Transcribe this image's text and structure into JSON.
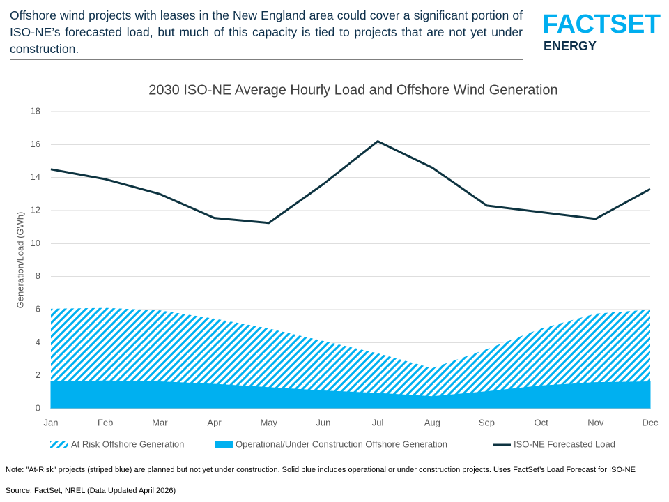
{
  "header": {
    "text": "Offshore wind projects with leases in the New England area could cover a significant portion of ISO-NE’s forecasted load, but much of this capacity is tied to projects that are not yet under construction.",
    "logo": "FACTSET",
    "logo_sub": "ENERGY"
  },
  "chart_data": {
    "type": "area",
    "title": "2030 ISO-NE Average Hourly Load and Offshore Wind Generation",
    "y_label": "Generation/Load (GWh)",
    "categories": [
      "Jan",
      "Feb",
      "Mar",
      "Apr",
      "May",
      "Jun",
      "Jul",
      "Aug",
      "Sep",
      "Oct",
      "Nov",
      "Dec"
    ],
    "series": [
      {
        "name": "At Risk Offshore Generation",
        "color": "#00b0f0",
        "kind": "area",
        "hatch": true,
        "values": [
          4.4,
          4.4,
          4.3,
          3.95,
          3.55,
          3.0,
          2.4,
          1.7,
          2.55,
          3.45,
          4.15,
          4.35
        ]
      },
      {
        "name": "Operational/Under Construction Offshore Generation",
        "color": "#00b0f0",
        "kind": "area",
        "hatch": false,
        "values": [
          1.65,
          1.7,
          1.65,
          1.5,
          1.3,
          1.1,
          0.95,
          0.75,
          1.05,
          1.4,
          1.6,
          1.65
        ]
      },
      {
        "name": "ISO-NE Forecasted Load",
        "color": "#0d3340",
        "kind": "line",
        "values": [
          14.5,
          13.9,
          13.0,
          11.55,
          11.25,
          13.6,
          16.2,
          14.6,
          12.3,
          11.9,
          11.5,
          13.3
        ]
      }
    ],
    "ylim": [
      0,
      18
    ],
    "yticks": [
      0,
      2,
      4,
      6,
      8,
      10,
      12,
      14,
      16,
      18
    ],
    "grid": true,
    "legend": "bottom"
  },
  "footer": {
    "note": "Note: \"At-Risk\" projects (striped blue) are planned but not yet under construction. Solid blue includes operational or under construction projects. Uses FactSet’s Load Forecast for ISO-NE",
    "source": "Source: FactSet, NREL (Data Updated April 2026)"
  }
}
